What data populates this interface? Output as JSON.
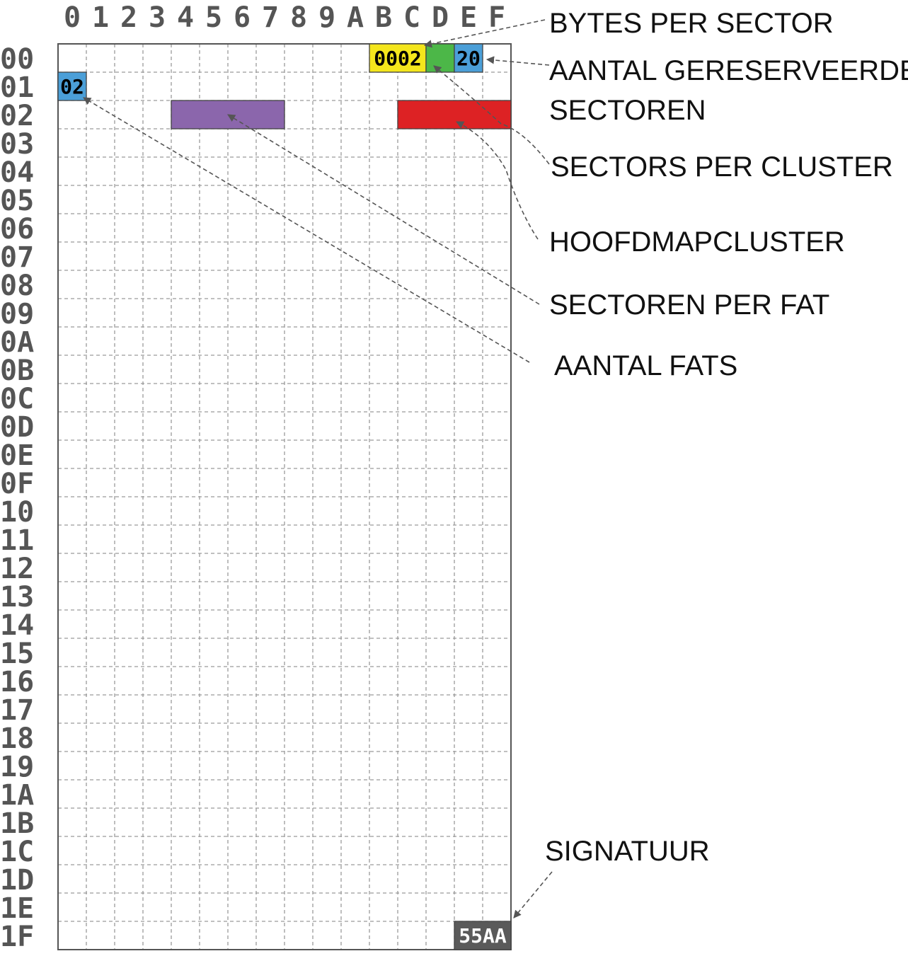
{
  "grid": {
    "columns": [
      "0",
      "1",
      "2",
      "3",
      "4",
      "5",
      "6",
      "7",
      "8",
      "9",
      "A",
      "B",
      "C",
      "D",
      "E",
      "F"
    ],
    "rows": [
      "00",
      "01",
      "02",
      "03",
      "04",
      "05",
      "06",
      "07",
      "08",
      "09",
      "0A",
      "0B",
      "0C",
      "0D",
      "0E",
      "0F",
      "10",
      "11",
      "12",
      "13",
      "14",
      "15",
      "16",
      "17",
      "18",
      "19",
      "1A",
      "1B",
      "1C",
      "1D",
      "1E",
      "1F"
    ]
  },
  "fields": [
    {
      "id": "bytes-per-sector",
      "row": 0,
      "col": 11,
      "span": 2,
      "color": "#f4e61c",
      "value": "0002",
      "text_color": "#000000"
    },
    {
      "id": "sectors-per-cluster",
      "row": 0,
      "col": 13,
      "span": 1,
      "color": "#4cb748",
      "value": "",
      "text_color": "#000000"
    },
    {
      "id": "reserved-sectors",
      "row": 0,
      "col": 14,
      "span": 1,
      "color": "#4b9fd8",
      "value": "20",
      "text_color": "#000000"
    },
    {
      "id": "number-of-fats",
      "row": 1,
      "col": 0,
      "span": 1,
      "color": "#4b9fd8",
      "value": "02",
      "text_color": "#000000"
    },
    {
      "id": "sectors-per-fat",
      "row": 2,
      "col": 4,
      "span": 4,
      "color": "#8b66ac",
      "value": "",
      "text_color": "#ffffff"
    },
    {
      "id": "root-cluster",
      "row": 2,
      "col": 12,
      "span": 4,
      "color": "#dd2224",
      "value": "",
      "text_color": "#ffffff"
    },
    {
      "id": "signature",
      "row": 31,
      "col": 14,
      "span": 2,
      "color": "#5a5a5a",
      "value": "55AA",
      "text_color": "#ffffff"
    }
  ],
  "labels": [
    {
      "id": "bytes-per-sector",
      "lines": [
        "BYTES PER SECTOR"
      ]
    },
    {
      "id": "reserved-sectors",
      "lines": [
        "AANTAL GERESERVEERDE",
        "SECTOREN"
      ]
    },
    {
      "id": "sectors-per-cluster",
      "lines": [
        "SECTORS PER CLUSTER"
      ]
    },
    {
      "id": "root-cluster",
      "lines": [
        "HOOFDMAPCLUSTER"
      ]
    },
    {
      "id": "sectors-per-fat",
      "lines": [
        "SECTOREN PER FAT"
      ]
    },
    {
      "id": "number-of-fats",
      "lines": [
        "AANTAL FATS"
      ]
    },
    {
      "id": "signature",
      "lines": [
        "SIGNATUUR"
      ]
    }
  ]
}
